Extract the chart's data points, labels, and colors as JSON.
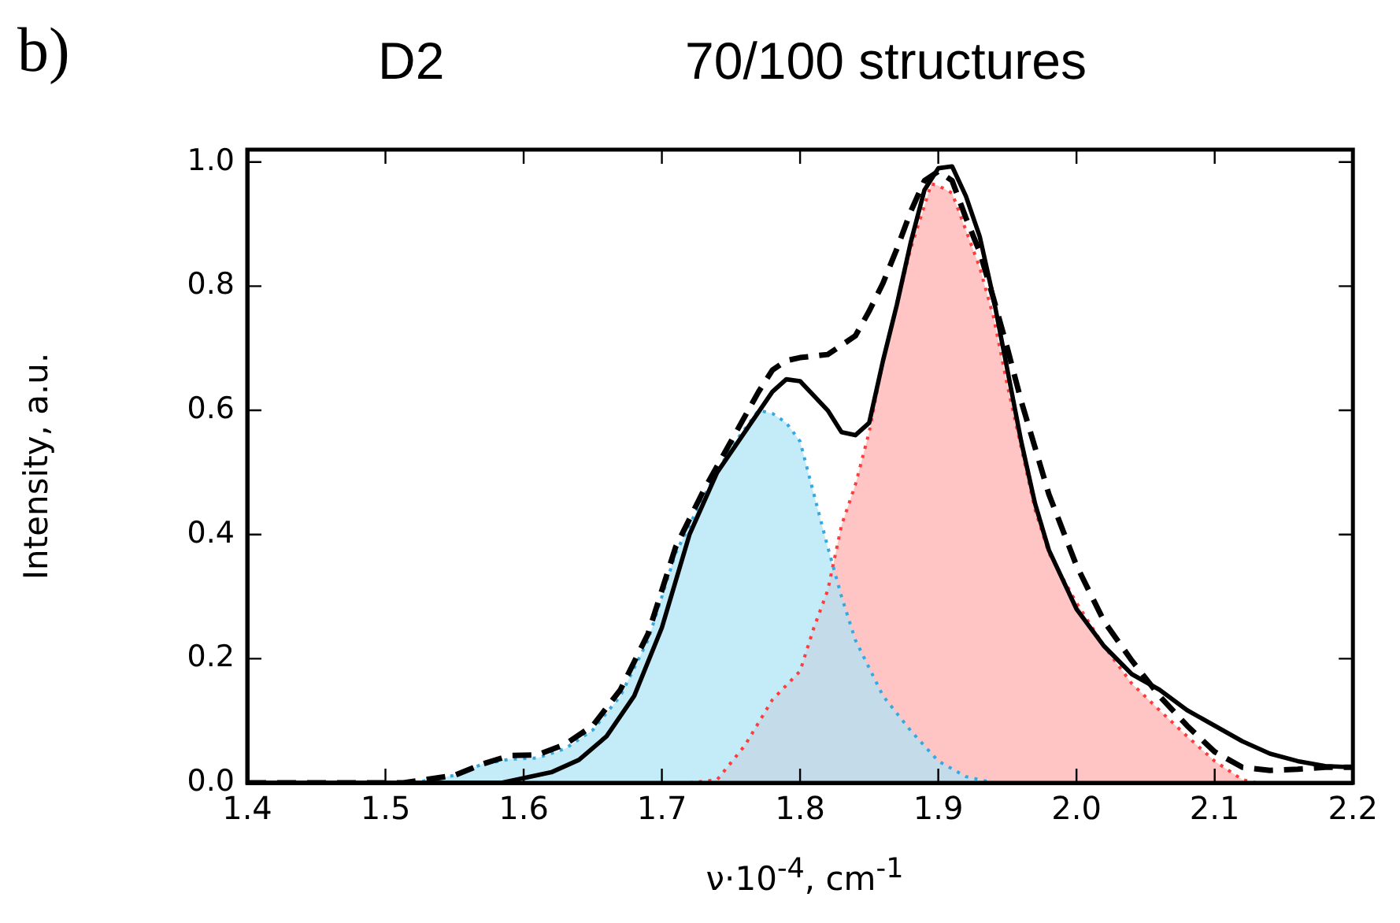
{
  "chart_data": {
    "type": "line",
    "title": "D2",
    "subtitle": "70/100 structures",
    "annotations": [
      "b)"
    ],
    "xlabel": "ν·10$^{-4}$, cm$^{-1}$",
    "ylabel": "Intensity, a.u.",
    "xlim": [
      1.4,
      2.2
    ],
    "ylim": [
      0,
      1.02
    ],
    "xticks": [
      1.4,
      1.5,
      1.6,
      1.7,
      1.8,
      1.9,
      {
        "value": 2.0,
        "label": "2.0"
      },
      2.1,
      2.2
    ],
    "yticks": [
      {
        "value": 0,
        "label": "0.0"
      },
      0.2,
      0.4,
      0.6,
      0.8,
      {
        "value": 1.0,
        "label": "1.0"
      }
    ],
    "grid": false,
    "legend": false,
    "series": [
      {
        "type": "area",
        "color": "#ffc4c4",
        "line_style": "dotted",
        "x": [
          1.72,
          1.74,
          1.76,
          1.78,
          1.8,
          1.81,
          1.82,
          1.83,
          1.84,
          1.85,
          1.86,
          1.87,
          1.88,
          1.89,
          1.895,
          1.9,
          1.91,
          1.92,
          1.93,
          1.94,
          1.95,
          1.96,
          1.97,
          1.98,
          2.0,
          2.02,
          2.04,
          2.06,
          2.08,
          2.1,
          2.12,
          2.13
        ],
        "values": [
          0,
          0.005,
          0.06,
          0.134,
          0.18,
          0.25,
          0.31,
          0.415,
          0.48,
          0.565,
          0.68,
          0.77,
          0.86,
          0.93,
          0.965,
          0.962,
          0.95,
          0.89,
          0.83,
          0.75,
          0.64,
          0.54,
          0.44,
          0.37,
          0.29,
          0.22,
          0.16,
          0.117,
          0.075,
          0.035,
          0.005,
          0
        ]
      },
      {
        "type": "area",
        "color": "#b0e4f6",
        "line_style": "dotted",
        "x": [
          1.52,
          1.55,
          1.57,
          1.59,
          1.61,
          1.63,
          1.65,
          1.67,
          1.69,
          1.71,
          1.73,
          1.75,
          1.77,
          1.78,
          1.79,
          1.8,
          1.81,
          1.82,
          1.83,
          1.84,
          1.86,
          1.88,
          1.9,
          1.92,
          1.94
        ],
        "values": [
          0,
          0.012,
          0.03,
          0.038,
          0.04,
          0.055,
          0.085,
          0.14,
          0.23,
          0.37,
          0.46,
          0.54,
          0.6,
          0.595,
          0.58,
          0.55,
          0.465,
          0.38,
          0.3,
          0.23,
          0.14,
          0.084,
          0.035,
          0.01,
          0
        ]
      },
      {
        "type": "line",
        "color": "#000000",
        "line_style": "solid",
        "x": [
          1.4,
          1.584,
          1.62,
          1.64,
          1.66,
          1.68,
          1.7,
          1.72,
          1.74,
          1.76,
          1.78,
          1.79,
          1.8,
          1.82,
          1.83,
          1.84,
          1.85,
          1.86,
          1.87,
          1.88,
          1.89,
          1.9,
          1.91,
          1.92,
          1.93,
          1.94,
          1.95,
          1.96,
          1.97,
          1.98,
          2.0,
          2.02,
          2.04,
          2.06,
          2.08,
          2.1,
          2.12,
          2.14,
          2.16,
          2.18,
          2.2
        ],
        "values": [
          0,
          0,
          0.017,
          0.037,
          0.075,
          0.14,
          0.25,
          0.4,
          0.5,
          0.565,
          0.63,
          0.65,
          0.647,
          0.6,
          0.565,
          0.56,
          0.58,
          0.68,
          0.77,
          0.87,
          0.955,
          0.99,
          0.993,
          0.945,
          0.88,
          0.78,
          0.665,
          0.55,
          0.45,
          0.375,
          0.28,
          0.22,
          0.175,
          0.15,
          0.117,
          0.092,
          0.067,
          0.047,
          0.035,
          0.027,
          0.025
        ]
      },
      {
        "type": "line",
        "color": "#000000",
        "line_style": "dashed",
        "x": [
          1.4,
          1.513,
          1.55,
          1.57,
          1.59,
          1.61,
          1.63,
          1.65,
          1.67,
          1.69,
          1.71,
          1.73,
          1.75,
          1.77,
          1.78,
          1.79,
          1.8,
          1.82,
          1.84,
          1.85,
          1.86,
          1.87,
          1.88,
          1.89,
          1.9,
          1.91,
          1.92,
          1.93,
          1.94,
          1.95,
          1.96,
          1.98,
          2.0,
          2.02,
          2.04,
          2.06,
          2.08,
          2.1,
          2.12,
          2.14,
          2.16,
          2.18,
          2.2
        ],
        "values": [
          0,
          0,
          0.012,
          0.03,
          0.044,
          0.045,
          0.062,
          0.092,
          0.15,
          0.24,
          0.38,
          0.47,
          0.55,
          0.63,
          0.665,
          0.68,
          0.685,
          0.69,
          0.72,
          0.76,
          0.805,
          0.86,
          0.92,
          0.97,
          0.985,
          0.97,
          0.91,
          0.855,
          0.78,
          0.7,
          0.615,
          0.465,
          0.35,
          0.26,
          0.197,
          0.14,
          0.092,
          0.05,
          0.025,
          0.02,
          0.022,
          0.025,
          0.025
        ]
      }
    ]
  }
}
